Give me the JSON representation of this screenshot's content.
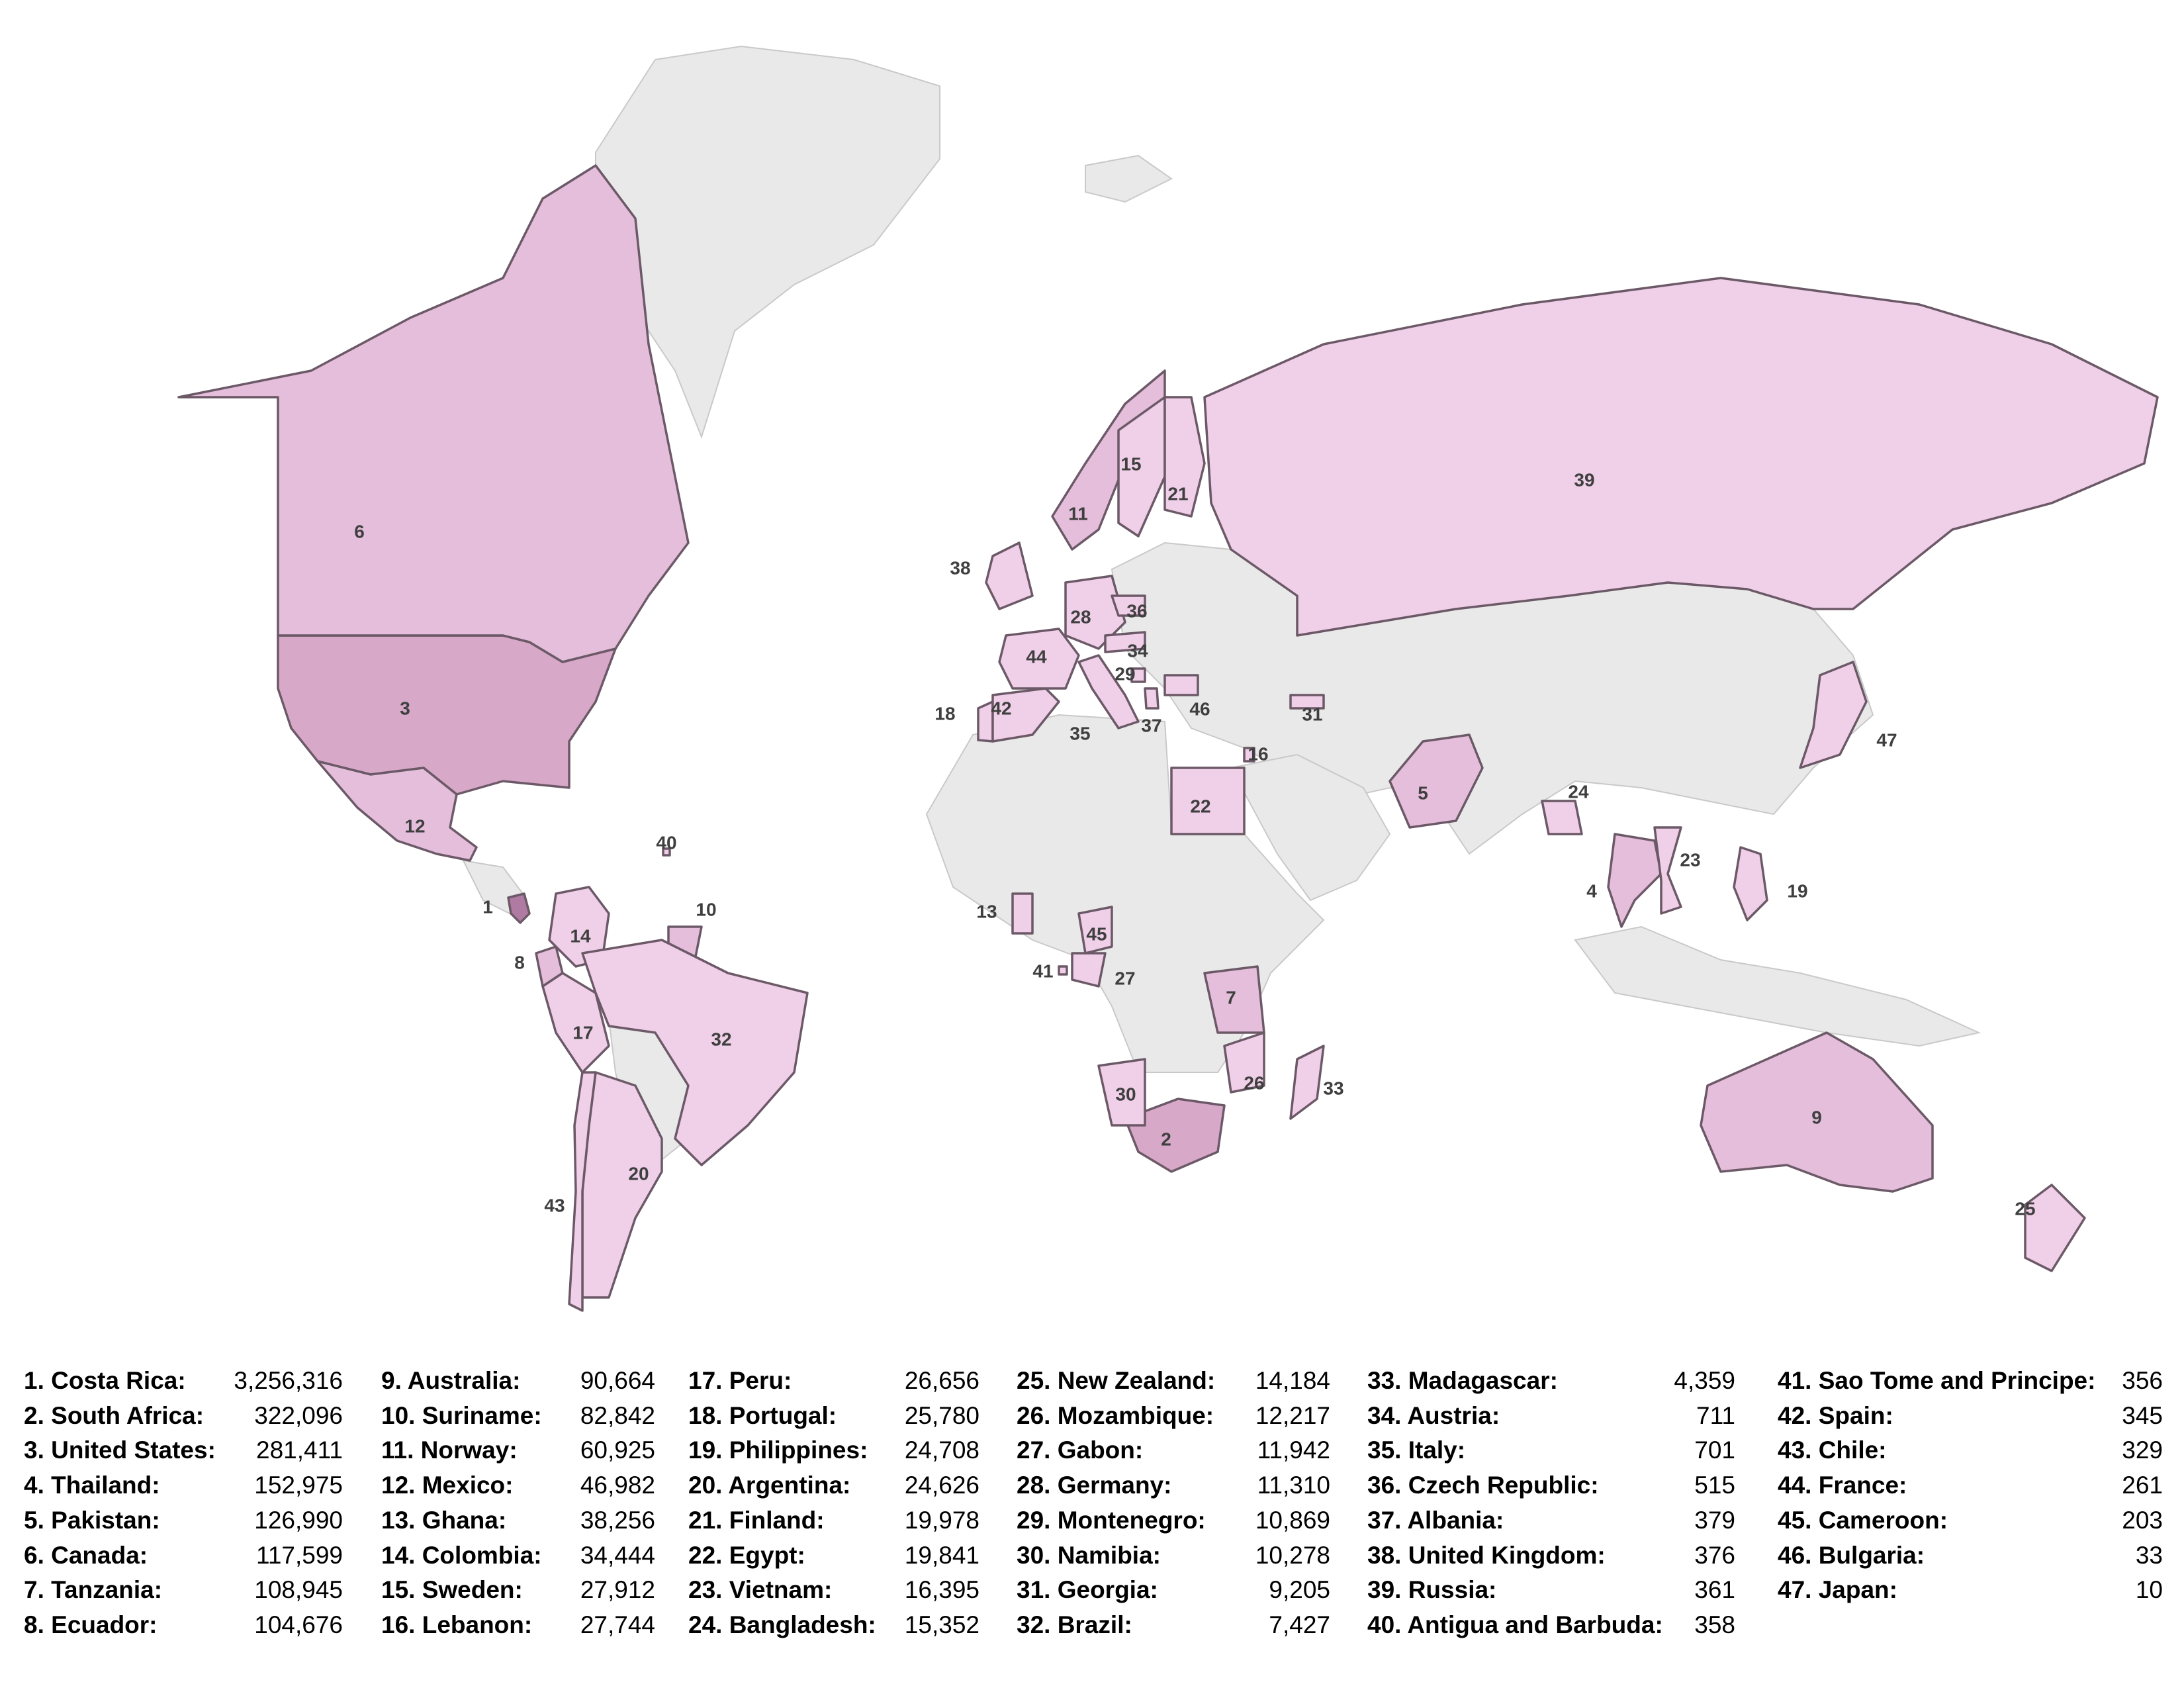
{
  "map": {
    "colors": {
      "highlight": "#f0d0e8",
      "highlight_mid": "#e4bedb",
      "highlight_dark": "#d7a8c8",
      "highlight_max": "#b07ba2",
      "other_land": "#e9e9e9",
      "border": "#6c5967"
    }
  },
  "countries": [
    {
      "rank": 1,
      "label": "1. Costa Rica:",
      "value": "3,256,316",
      "level": 3
    },
    {
      "rank": 2,
      "label": "2. South Africa:",
      "value": "322,096",
      "level": 2
    },
    {
      "rank": 3,
      "label": "3. United States:",
      "value": "281,411",
      "level": 2
    },
    {
      "rank": 4,
      "label": "4. Thailand:",
      "value": "152,975",
      "level": 1
    },
    {
      "rank": 5,
      "label": "5. Pakistan:",
      "value": "126,990",
      "level": 1
    },
    {
      "rank": 6,
      "label": "6. Canada:",
      "value": "117,599",
      "level": 1
    },
    {
      "rank": 7,
      "label": "7. Tanzania:",
      "value": "108,945",
      "level": 1
    },
    {
      "rank": 8,
      "label": "8. Ecuador:",
      "value": "104,676",
      "level": 1
    },
    {
      "rank": 9,
      "label": "9. Australia:",
      "value": "90,664",
      "level": 1
    },
    {
      "rank": 10,
      "label": "10. Suriname:",
      "value": "82,842",
      "level": 1
    },
    {
      "rank": 11,
      "label": "11. Norway:",
      "value": "60,925",
      "level": 1
    },
    {
      "rank": 12,
      "label": "12. Mexico:",
      "value": "46,982",
      "level": 1
    },
    {
      "rank": 13,
      "label": "13. Ghana:",
      "value": "38,256",
      "level": 0
    },
    {
      "rank": 14,
      "label": "14. Colombia:",
      "value": "34,444",
      "level": 0
    },
    {
      "rank": 15,
      "label": "15. Sweden:",
      "value": "27,912",
      "level": 0
    },
    {
      "rank": 16,
      "label": "16. Lebanon:",
      "value": "27,744",
      "level": 0
    },
    {
      "rank": 17,
      "label": "17. Peru:",
      "value": "26,656",
      "level": 0
    },
    {
      "rank": 18,
      "label": "18. Portugal:",
      "value": "25,780",
      "level": 0
    },
    {
      "rank": 19,
      "label": "19. Philippines:",
      "value": "24,708",
      "level": 0
    },
    {
      "rank": 20,
      "label": "20. Argentina:",
      "value": "24,626",
      "level": 0
    },
    {
      "rank": 21,
      "label": "21. Finland:",
      "value": "19,978",
      "level": 0
    },
    {
      "rank": 22,
      "label": "22. Egypt:",
      "value": "19,841",
      "level": 0
    },
    {
      "rank": 23,
      "label": "23. Vietnam:",
      "value": "16,395",
      "level": 0
    },
    {
      "rank": 24,
      "label": "24. Bangladesh:",
      "value": "15,352",
      "level": 0
    },
    {
      "rank": 25,
      "label": "25. New Zealand:",
      "value": "14,184",
      "level": 0
    },
    {
      "rank": 26,
      "label": "26. Mozambique:",
      "value": "12,217",
      "level": 0
    },
    {
      "rank": 27,
      "label": "27. Gabon:",
      "value": "11,942",
      "level": 0
    },
    {
      "rank": 28,
      "label": "28. Germany:",
      "value": "11,310",
      "level": 0
    },
    {
      "rank": 29,
      "label": "29. Montenegro:",
      "value": "10,869",
      "level": 0
    },
    {
      "rank": 30,
      "label": "30. Namibia:",
      "value": "10,278",
      "level": 0
    },
    {
      "rank": 31,
      "label": "31. Georgia:",
      "value": "9,205",
      "level": 0
    },
    {
      "rank": 32,
      "label": "32. Brazil:",
      "value": "7,427",
      "level": 0
    },
    {
      "rank": 33,
      "label": "33. Madagascar:",
      "value": "4,359",
      "level": 0
    },
    {
      "rank": 34,
      "label": "34. Austria:",
      "value": "711",
      "level": 0
    },
    {
      "rank": 35,
      "label": "35. Italy:",
      "value": "701",
      "level": 0
    },
    {
      "rank": 36,
      "label": "36. Czech Republic:",
      "value": "515",
      "level": 0
    },
    {
      "rank": 37,
      "label": "37. Albania:",
      "value": "379",
      "level": 0
    },
    {
      "rank": 38,
      "label": "38. United Kingdom:",
      "value": "376",
      "level": 0
    },
    {
      "rank": 39,
      "label": "39. Russia:",
      "value": "361",
      "level": 0
    },
    {
      "rank": 40,
      "label": "40. Antigua and Barbuda:",
      "value": "358",
      "level": 0
    },
    {
      "rank": 41,
      "label": "41. Sao Tome and Principe:",
      "value": "356",
      "level": 0
    },
    {
      "rank": 42,
      "label": "42. Spain:",
      "value": "345",
      "level": 0
    },
    {
      "rank": 43,
      "label": "43. Chile:",
      "value": "329",
      "level": 0
    },
    {
      "rank": 44,
      "label": "44. France:",
      "value": "261",
      "level": 0
    },
    {
      "rank": 45,
      "label": "45. Cameroon:",
      "value": "203",
      "level": 0
    },
    {
      "rank": 46,
      "label": "46. Bulgaria:",
      "value": "33",
      "level": 0
    },
    {
      "rank": 47,
      "label": "47. Japan:",
      "value": "10",
      "level": 0
    }
  ]
}
